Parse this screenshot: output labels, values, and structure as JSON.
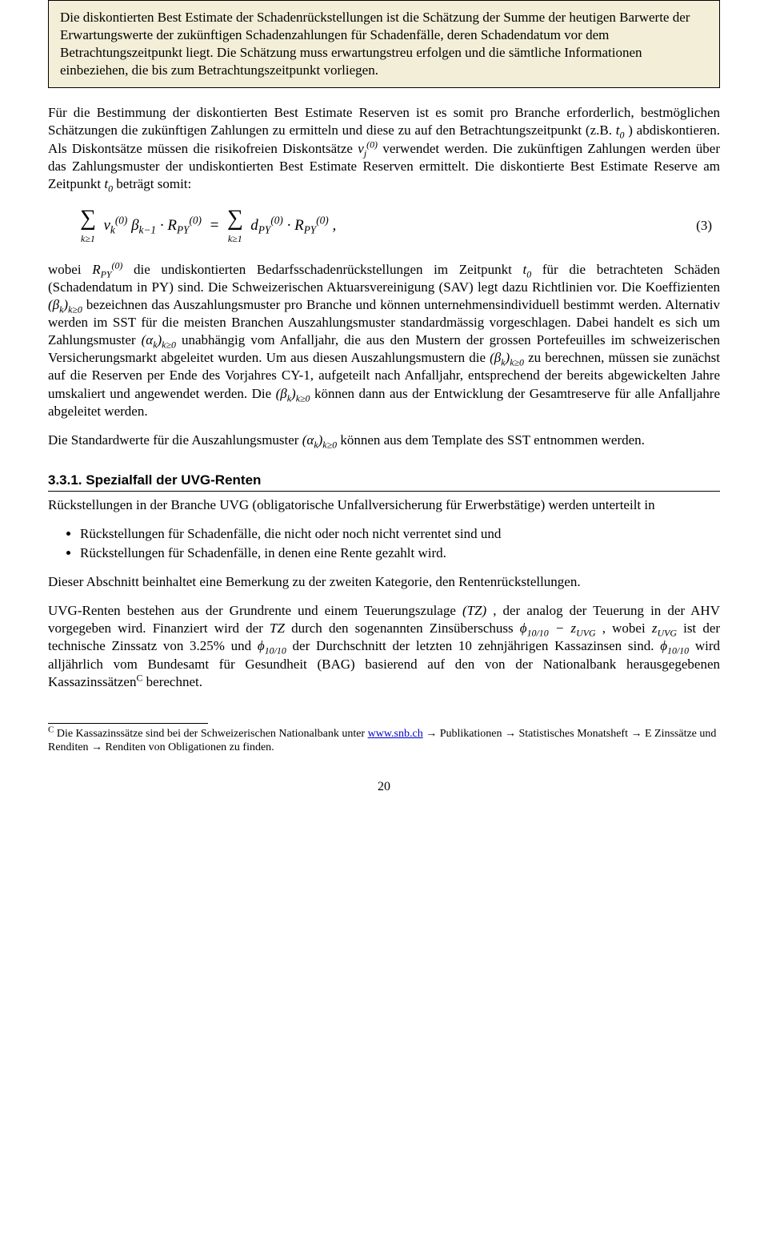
{
  "definition_box": {
    "text": "Die diskontierten Best Estimate der Schadenrückstellungen ist die Schätzung der Summe der heutigen Barwerte der Erwartungswerte der zukünftigen Schadenzahlungen für Schadenfälle, deren Schadendatum vor dem Betrachtungszeitpunkt liegt. Die Schätzung muss erwartungstreu erfolgen und die sämtliche Informationen einbeziehen, die bis zum Betrachtungszeitpunkt vorliegen."
  },
  "para1_a": "Für die Bestimmung der diskontierten Best Estimate Reserven ist es somit pro Branche erforderlich, bestmöglichen Schätzungen die zukünftigen Zahlungen zu ermitteln und diese zu auf den Betrachtungszeitpunkt (z.B. ",
  "para1_b": ") abdiskontieren. Als Diskontsätze müssen die risikofreien Diskontsätze ",
  "para1_c": " verwendet werden. Die zukünftigen Zahlungen werden über das Zahlungsmuster der undiskontierten Best Estimate Reserven ermittelt. Die diskontierte Best Estimate Reserve am Zeitpunkt ",
  "para1_d": " beträgt somit:",
  "formula_number": "(3)",
  "para2_a": "wobei ",
  "para2_b": " die undiskontierten Bedarfsschadenrückstellungen im Zeitpunkt ",
  "para2_c": " für die betrachteten Schäden (Schadendatum in PY) sind. Die Schweizerischen Aktuarsvereinigung (SAV) legt dazu Richtlinien vor. Die Koeffizienten ",
  "para2_d": " bezeichnen das Auszahlungsmuster pro Branche und können unternehmensindividuell bestimmt werden. Alternativ werden im SST für die meisten Branchen Auszahlungsmuster standardmässig vorgeschlagen. Dabei handelt es sich um Zahlungsmuster ",
  "para2_e": " unabhängig vom Anfalljahr, die aus den Mustern der grossen Portefeuilles im schweizerischen Versicherungsmarkt abgeleitet wurden. Um aus diesen Auszahlungsmustern die ",
  "para2_f": " zu berechnen, müssen sie zunächst auf die Reserven per Ende des Vorjahres CY-1, aufgeteilt nach Anfalljahr, entsprechend der bereits abgewickelten Jahre umskaliert und angewendet werden. Die ",
  "para2_g": " können dann aus der Entwicklung der Gesamtreserve für alle Anfalljahre abgeleitet werden.",
  "para3_a": "Die Standardwerte für die Auszahlungsmuster ",
  "para3_b": " können aus dem Template des SST entnommen werden.",
  "section_heading": "3.3.1.    Spezialfall der UVG-Renten",
  "para4": "Rückstellungen in der Branche UVG (obligatorische Unfallversicherung für Erwerbstätige) werden unterteilt in",
  "bullets": [
    "Rückstellungen für Schadenfälle, die nicht oder noch nicht verrentet sind und",
    "Rückstellungen für Schadenfälle, in denen eine Rente gezahlt wird."
  ],
  "para5": "Dieser Abschnitt beinhaltet eine Bemerkung zu der zweiten Kategorie, den Rentenrückstellungen.",
  "para6_a": "UVG-Renten bestehen aus der Grundrente und einem Teuerungszulage ",
  "para6_b": ", der analog der Teuerung in der AHV vorgegeben wird. Finanziert wird der ",
  "para6_c": " durch den sogenannten Zinsüberschuss ",
  "para6_d": ", wobei ",
  "para6_e": " ist der technische Zinssatz von 3.25% und ",
  "para6_f": " der Durchschnitt der letzten 10 zehnjährigen Kassazinsen sind. ",
  "para6_g": " wird alljährlich vom Bundesamt für Gesundheit (BAG) basierend auf den von der Nationalbank herausgegebenen Kassazinssätzen",
  "para6_h": " berechnet.",
  "footnote_label": "C",
  "footnote_a": " Die Kassazinssätze sind bei der Schweizerischen Nationalbank unter ",
  "footnote_link_text": "www.snb.ch",
  "footnote_link_href": "http://www.snb.ch",
  "footnote_b": " → Publikationen → Statistisches Monatsheft → E Zinssätze und Renditen → Renditen von Obligationen zu finden.",
  "page_number": "20",
  "math": {
    "t0": "t",
    "t0_sub": "0",
    "v": "v",
    "v_sup": "(0)",
    "v_sub": "j",
    "RPY": "R",
    "RPY_sup": "(0)",
    "RPY_sub": "PY",
    "beta_seq": "(βk)k≥0",
    "alpha_seq": "(αk)k≥0",
    "TZ": "(TZ)",
    "TZ_plain": "TZ",
    "phi": "ϕ",
    "phi_sub": "10/10",
    "z": "z",
    "z_sub": "UVG"
  }
}
